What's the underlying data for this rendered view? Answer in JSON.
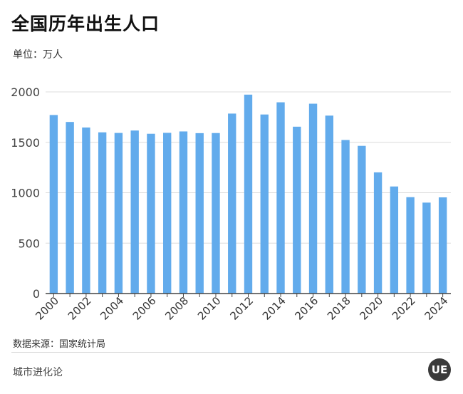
{
  "header": {
    "title": "全国历年出生人口",
    "unit": "单位：万人"
  },
  "footer": {
    "source": "数据来源：国家统计局",
    "brand": "城市进化论",
    "logo_text": "UE"
  },
  "colors": {
    "bar": "#62ABEC",
    "grid": "#dcdcdc",
    "axis": "#444444"
  },
  "chart_data": {
    "type": "bar",
    "title": "全国历年出生人口",
    "ylabel": "单位：万人",
    "ylim": [
      0,
      2000
    ],
    "yticks": [
      0,
      500,
      1000,
      1500,
      2000
    ],
    "grid": true,
    "categories": [
      "2000",
      "2001",
      "2002",
      "2003",
      "2004",
      "2005",
      "2006",
      "2007",
      "2008",
      "2009",
      "2010",
      "2011",
      "2012",
      "2013",
      "2014",
      "2015",
      "2016",
      "2017",
      "2018",
      "2019",
      "2020",
      "2021",
      "2022",
      "2023",
      "2024"
    ],
    "x_tick_labels": [
      "2000",
      "2002",
      "2004",
      "2006",
      "2008",
      "2010",
      "2012",
      "2014",
      "2016",
      "2018",
      "2020",
      "2022",
      "2024"
    ],
    "values": [
      1771,
      1702,
      1647,
      1599,
      1593,
      1617,
      1585,
      1594,
      1608,
      1591,
      1592,
      1785,
      1973,
      1776,
      1897,
      1655,
      1883,
      1765,
      1523,
      1465,
      1202,
      1062,
      956,
      902,
      954
    ]
  }
}
